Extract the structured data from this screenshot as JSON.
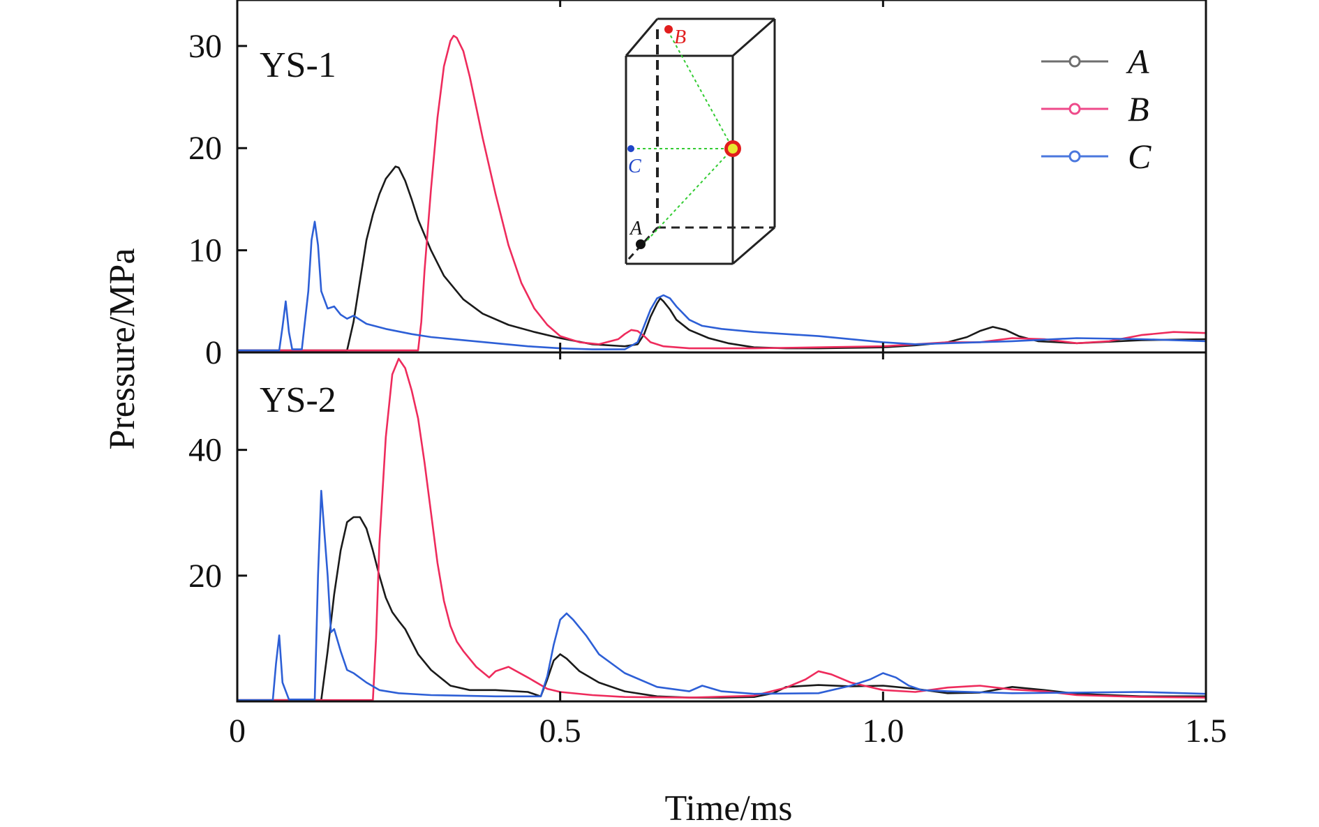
{
  "chart_data": [
    {
      "type": "line",
      "panel_label": "YS-1",
      "xlabel": "Time/ms",
      "ylabel": "Pressure/MPa",
      "xlim": [
        0,
        1.5
      ],
      "ylim": [
        0,
        34.5
      ],
      "xticks": [
        0,
        0.5,
        1.0,
        1.5
      ],
      "xtick_labels": [
        "0",
        "0.5",
        "1.0",
        "1.5"
      ],
      "yticks": [
        0,
        10,
        20,
        30
      ],
      "ytick_labels": [
        "0",
        "10",
        "20",
        "30"
      ],
      "legend_position": "top-right",
      "series": [
        {
          "name": "A",
          "color": "#1a1a1a",
          "x": [
            0,
            0.17,
            0.18,
            0.19,
            0.2,
            0.21,
            0.22,
            0.23,
            0.24,
            0.245,
            0.25,
            0.26,
            0.27,
            0.28,
            0.3,
            0.32,
            0.35,
            0.38,
            0.42,
            0.46,
            0.5,
            0.55,
            0.6,
            0.62,
            0.63,
            0.64,
            0.65,
            0.655,
            0.66,
            0.67,
            0.68,
            0.7,
            0.73,
            0.76,
            0.8,
            0.85,
            0.9,
            1.0,
            1.05,
            1.1,
            1.13,
            1.15,
            1.17,
            1.19,
            1.21,
            1.24,
            1.3,
            1.4,
            1.5
          ],
          "y": [
            0.2,
            0.2,
            3,
            7,
            11,
            13.5,
            15.5,
            17,
            17.8,
            18.2,
            18.1,
            16.8,
            15,
            13,
            10,
            7.5,
            5.2,
            3.8,
            2.7,
            2,
            1.4,
            0.8,
            0.6,
            0.8,
            1.8,
            3.5,
            4.8,
            5.3,
            5,
            4.2,
            3.2,
            2.2,
            1.4,
            0.9,
            0.5,
            0.4,
            0.4,
            0.5,
            0.7,
            1,
            1.5,
            2.1,
            2.5,
            2.2,
            1.6,
            1.1,
            0.9,
            1.2,
            1.3
          ]
        },
        {
          "name": "B",
          "color": "#ee2b5c",
          "x": [
            0,
            0.28,
            0.285,
            0.29,
            0.3,
            0.31,
            0.32,
            0.33,
            0.335,
            0.34,
            0.35,
            0.36,
            0.37,
            0.38,
            0.4,
            0.42,
            0.44,
            0.46,
            0.48,
            0.5,
            0.53,
            0.56,
            0.59,
            0.6,
            0.61,
            0.62,
            0.63,
            0.64,
            0.66,
            0.7,
            0.8,
            0.9,
            1.0,
            1.05,
            1.1,
            1.15,
            1.2,
            1.25,
            1.3,
            1.35,
            1.4,
            1.45,
            1.5
          ],
          "y": [
            0.2,
            0.2,
            3,
            8,
            16,
            23,
            28,
            30.5,
            31,
            30.8,
            29.5,
            27,
            24,
            21,
            15.5,
            10.5,
            6.8,
            4.3,
            2.7,
            1.6,
            1,
            0.8,
            1.3,
            1.8,
            2.2,
            2.1,
            1.6,
            1,
            0.6,
            0.4,
            0.4,
            0.5,
            0.6,
            0.8,
            1,
            1,
            1.4,
            1.3,
            0.9,
            1.1,
            1.7,
            2,
            1.9
          ]
        },
        {
          "name": "C",
          "color": "#2d5fd6",
          "x": [
            0,
            0.065,
            0.07,
            0.075,
            0.08,
            0.085,
            0.1,
            0.11,
            0.115,
            0.12,
            0.125,
            0.13,
            0.14,
            0.15,
            0.16,
            0.17,
            0.18,
            0.2,
            0.23,
            0.27,
            0.3,
            0.35,
            0.4,
            0.45,
            0.5,
            0.55,
            0.6,
            0.62,
            0.63,
            0.64,
            0.65,
            0.66,
            0.67,
            0.68,
            0.7,
            0.72,
            0.75,
            0.8,
            0.9,
            1.0,
            1.05,
            1.1,
            1.2,
            1.3,
            1.4,
            1.5
          ],
          "y": [
            0.2,
            0.2,
            2.5,
            5,
            2,
            0.3,
            0.3,
            6,
            11,
            12.8,
            10.5,
            6,
            4.3,
            4.5,
            3.7,
            3.3,
            3.6,
            2.8,
            2.3,
            1.8,
            1.5,
            1.2,
            0.9,
            0.6,
            0.4,
            0.3,
            0.3,
            1,
            2.6,
            4.2,
            5.3,
            5.6,
            5.3,
            4.5,
            3.2,
            2.6,
            2.3,
            2,
            1.6,
            1,
            0.8,
            0.9,
            1.1,
            1.4,
            1.3,
            1.1
          ]
        }
      ]
    },
    {
      "type": "line",
      "panel_label": "YS-2",
      "xlabel": "Time/ms",
      "ylabel": "Pressure/MPa",
      "xlim": [
        0,
        1.5
      ],
      "ylim": [
        0,
        55.5
      ],
      "xticks": [
        0,
        0.5,
        1.0,
        1.5
      ],
      "xtick_labels": [
        "0",
        "0.5",
        "1.0",
        "1.5"
      ],
      "yticks": [
        20,
        40
      ],
      "ytick_labels": [
        "20",
        "40"
      ],
      "series": [
        {
          "name": "A",
          "color": "#1a1a1a",
          "x": [
            0,
            0.13,
            0.14,
            0.15,
            0.16,
            0.17,
            0.18,
            0.19,
            0.2,
            0.21,
            0.22,
            0.23,
            0.24,
            0.25,
            0.26,
            0.27,
            0.28,
            0.3,
            0.33,
            0.36,
            0.4,
            0.45,
            0.47,
            0.48,
            0.49,
            0.5,
            0.51,
            0.53,
            0.56,
            0.6,
            0.65,
            0.7,
            0.75,
            0.8,
            0.83,
            0.85,
            0.9,
            0.95,
            1.0,
            1.05,
            1.1,
            1.15,
            1.2,
            1.25,
            1.3,
            1.4,
            1.5
          ],
          "y": [
            0.2,
            0.2,
            8,
            17,
            24,
            28.5,
            29.3,
            29.3,
            27.5,
            24,
            20,
            16.5,
            14.2,
            12.8,
            11.5,
            9.5,
            7.5,
            5,
            2.5,
            1.8,
            1.8,
            1.5,
            0.8,
            3.5,
            6.5,
            7.5,
            6.8,
            4.8,
            3,
            1.6,
            0.8,
            0.6,
            0.6,
            0.7,
            1.3,
            2.3,
            2.6,
            2.4,
            2.5,
            2,
            1.3,
            1.4,
            2.3,
            1.8,
            1.2,
            0.8,
            0.8
          ]
        },
        {
          "name": "B",
          "color": "#ee2b5c",
          "x": [
            0,
            0.21,
            0.215,
            0.22,
            0.23,
            0.24,
            0.25,
            0.26,
            0.27,
            0.28,
            0.29,
            0.3,
            0.31,
            0.32,
            0.33,
            0.34,
            0.35,
            0.37,
            0.39,
            0.4,
            0.42,
            0.45,
            0.48,
            0.5,
            0.55,
            0.6,
            0.7,
            0.8,
            0.85,
            0.88,
            0.9,
            0.92,
            0.95,
            1.0,
            1.05,
            1.1,
            1.15,
            1.2,
            1.25,
            1.3,
            1.4,
            1.5
          ],
          "y": [
            0.2,
            0.2,
            10,
            25,
            42,
            52,
            54.5,
            53,
            49.5,
            45,
            38,
            30,
            22,
            16,
            12,
            9.5,
            8,
            5.5,
            3.8,
            4.8,
            5.5,
            3.8,
            2,
            1.5,
            1,
            0.7,
            0.6,
            0.9,
            2.2,
            3.5,
            4.8,
            4.3,
            3,
            1.8,
            1.5,
            2.2,
            2.5,
            1.9,
            1.6,
            1,
            0.7,
            0.6
          ]
        },
        {
          "name": "C",
          "color": "#2d5fd6",
          "x": [
            0,
            0.055,
            0.06,
            0.065,
            0.07,
            0.08,
            0.12,
            0.125,
            0.13,
            0.14,
            0.145,
            0.15,
            0.16,
            0.17,
            0.18,
            0.2,
            0.22,
            0.25,
            0.3,
            0.4,
            0.47,
            0.48,
            0.49,
            0.5,
            0.51,
            0.52,
            0.54,
            0.56,
            0.6,
            0.65,
            0.7,
            0.72,
            0.75,
            0.8,
            0.9,
            0.95,
            0.98,
            1.0,
            1.02,
            1.04,
            1.06,
            1.1,
            1.2,
            1.3,
            1.4,
            1.5
          ],
          "y": [
            0.2,
            0.2,
            6,
            10.5,
            3,
            0.3,
            0.3,
            20,
            33.5,
            20,
            11,
            11.5,
            8,
            5,
            4.5,
            3,
            1.8,
            1.3,
            1,
            0.8,
            0.8,
            4,
            9,
            13,
            14,
            13,
            10.5,
            7.5,
            4.5,
            2.3,
            1.6,
            2.5,
            1.6,
            1.2,
            1.3,
            2.5,
            3.5,
            4.5,
            3.8,
            2.5,
            1.8,
            1.6,
            1.3,
            1.4,
            1.5,
            1.2
          ]
        }
      ]
    }
  ],
  "legend": {
    "items": [
      {
        "label": "A",
        "color": "#6e6e6e"
      },
      {
        "label": "B",
        "color": "#ee4a8a"
      },
      {
        "label": "C",
        "color": "#4a77de"
      }
    ]
  },
  "inset": {
    "labels": [
      {
        "text": "A",
        "color": "#111111"
      },
      {
        "text": "B",
        "color": "#e11d1d"
      },
      {
        "text": "C",
        "color": "#1f45c8"
      }
    ],
    "point_colors": {
      "A": "#111111",
      "B": "#e11d1d",
      "C": "#1f45c8",
      "source": "#e8e830",
      "source_ring": "#e11d1d",
      "guide": "#33cc33"
    }
  }
}
